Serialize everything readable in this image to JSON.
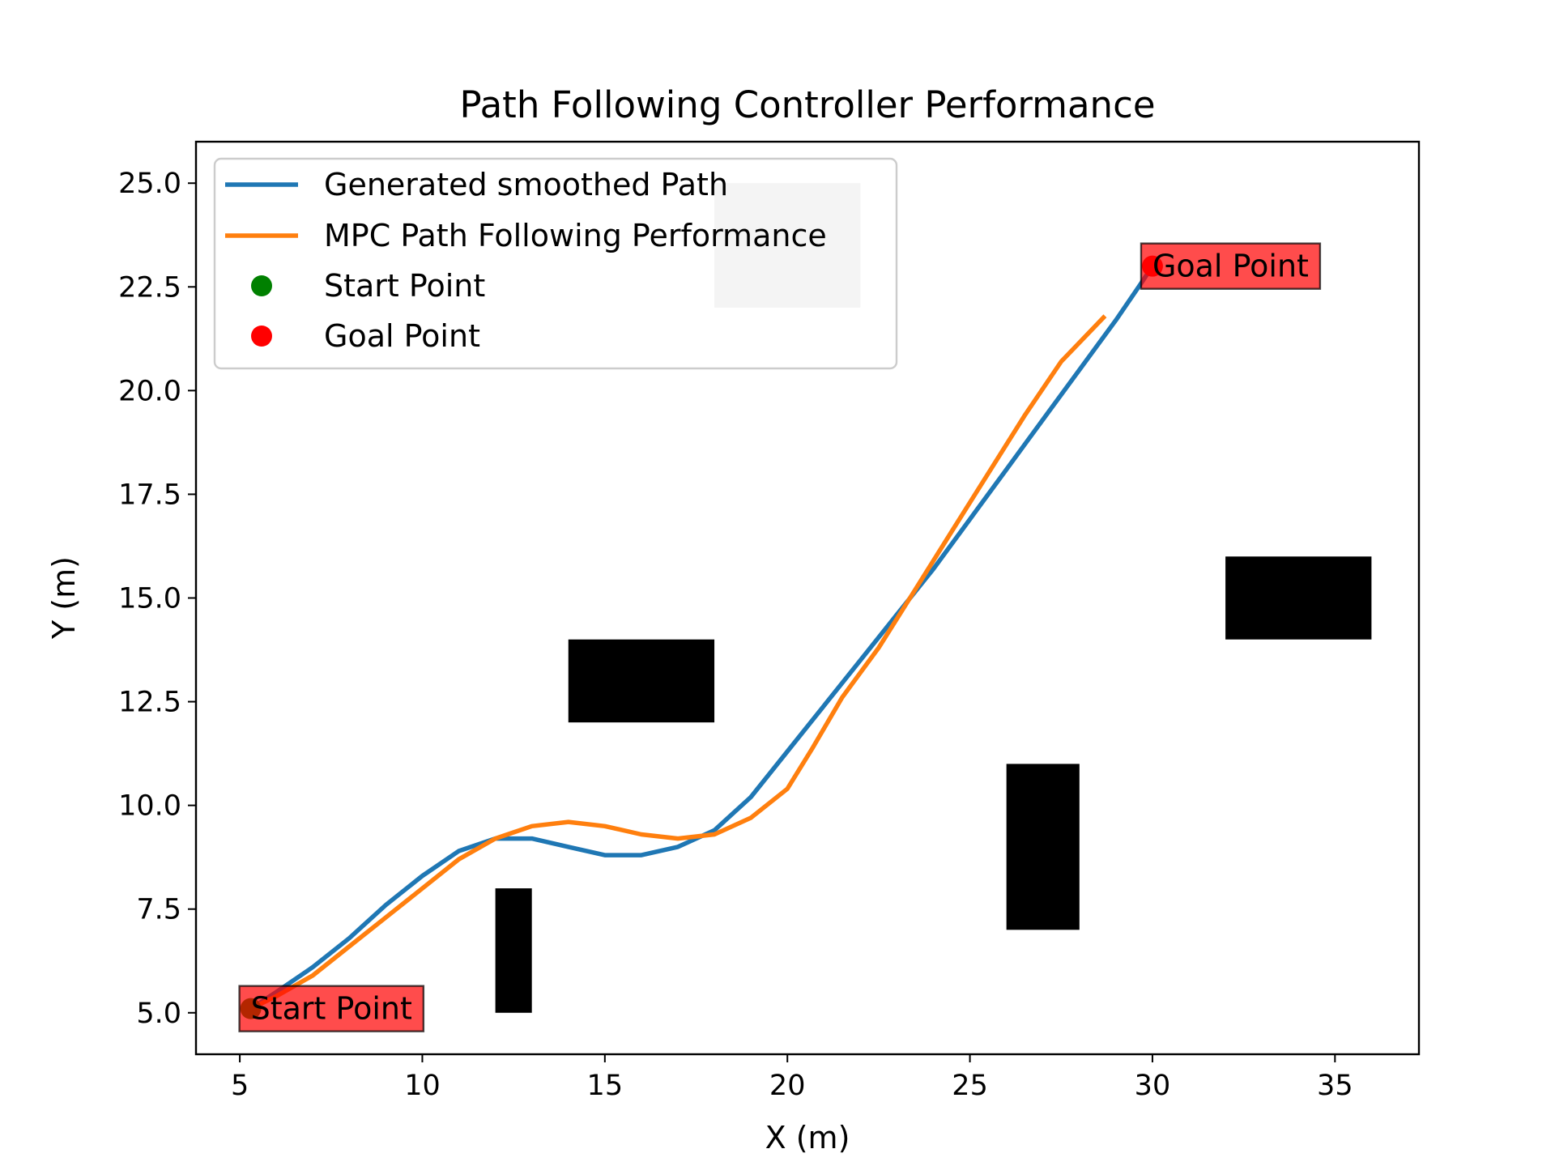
{
  "chart_data": {
    "type": "line",
    "title": "Path Following Controller Performance",
    "xlabel": "X (m)",
    "ylabel": "Y (m)",
    "xlim": [
      3.8,
      37.3
    ],
    "ylim": [
      4.0,
      26.0
    ],
    "xticks": [
      5,
      10,
      15,
      20,
      25,
      30,
      35
    ],
    "yticks": [
      5.0,
      7.5,
      10.0,
      12.5,
      15.0,
      17.5,
      20.0,
      22.5,
      25.0
    ],
    "grid": false,
    "legend_position": "upper-left",
    "series": [
      {
        "name": "Generated smoothed Path",
        "color": "#1f77b4",
        "points": [
          [
            5.3,
            5.1
          ],
          [
            6.0,
            5.5
          ],
          [
            7.0,
            6.1
          ],
          [
            8.0,
            6.8
          ],
          [
            9.0,
            7.6
          ],
          [
            10.0,
            8.3
          ],
          [
            11.0,
            8.9
          ],
          [
            12.0,
            9.2
          ],
          [
            13.0,
            9.2
          ],
          [
            14.0,
            9.0
          ],
          [
            15.0,
            8.8
          ],
          [
            16.0,
            8.8
          ],
          [
            17.0,
            9.0
          ],
          [
            18.0,
            9.4
          ],
          [
            19.0,
            10.2
          ],
          [
            20.0,
            11.3
          ],
          [
            21.0,
            12.4
          ],
          [
            22.0,
            13.5
          ],
          [
            23.0,
            14.6
          ],
          [
            24.0,
            15.7
          ],
          [
            25.0,
            16.9
          ],
          [
            26.0,
            18.1
          ],
          [
            27.0,
            19.3
          ],
          [
            28.0,
            20.5
          ],
          [
            29.0,
            21.7
          ],
          [
            29.7,
            22.6
          ],
          [
            30.0,
            23.0
          ]
        ]
      },
      {
        "name": "MPC Path Following Performance",
        "color": "#ff7f0e",
        "points": [
          [
            5.3,
            5.1
          ],
          [
            6.0,
            5.4
          ],
          [
            7.0,
            5.9
          ],
          [
            8.0,
            6.6
          ],
          [
            9.0,
            7.3
          ],
          [
            10.0,
            8.0
          ],
          [
            11.0,
            8.7
          ],
          [
            12.0,
            9.2
          ],
          [
            13.0,
            9.5
          ],
          [
            14.0,
            9.6
          ],
          [
            15.0,
            9.5
          ],
          [
            16.0,
            9.3
          ],
          [
            17.0,
            9.2
          ],
          [
            18.0,
            9.3
          ],
          [
            19.0,
            9.7
          ],
          [
            20.0,
            10.4
          ],
          [
            20.7,
            11.4
          ],
          [
            21.5,
            12.6
          ],
          [
            22.5,
            13.8
          ],
          [
            23.5,
            15.2
          ],
          [
            24.5,
            16.6
          ],
          [
            25.5,
            18.0
          ],
          [
            26.5,
            19.4
          ],
          [
            27.5,
            20.7
          ],
          [
            28.7,
            21.8
          ]
        ]
      }
    ],
    "markers": [
      {
        "name": "Start Point",
        "x": 5.3,
        "y": 5.1,
        "color": "#008000"
      },
      {
        "name": "Goal Point",
        "x": 30.0,
        "y": 23.0,
        "color": "#ff0000"
      }
    ],
    "annotations": [
      {
        "text": "Start Point",
        "x": 5.3,
        "y": 5.1
      },
      {
        "text": "Goal Point",
        "x": 30.0,
        "y": 23.0
      }
    ],
    "obstacles": [
      {
        "x0": 12,
        "x1": 13,
        "y0": 5,
        "y1": 8,
        "color": "#000000"
      },
      {
        "x0": 14,
        "x1": 18,
        "y0": 12,
        "y1": 14,
        "color": "#000000"
      },
      {
        "x0": 26,
        "x1": 28,
        "y0": 7,
        "y1": 11,
        "color": "#000000"
      },
      {
        "x0": 32,
        "x1": 36,
        "y0": 14,
        "y1": 16,
        "color": "#000000"
      },
      {
        "x0": 18,
        "x1": 22,
        "y0": 22,
        "y1": 25,
        "color": "#c8c8c8"
      }
    ]
  }
}
